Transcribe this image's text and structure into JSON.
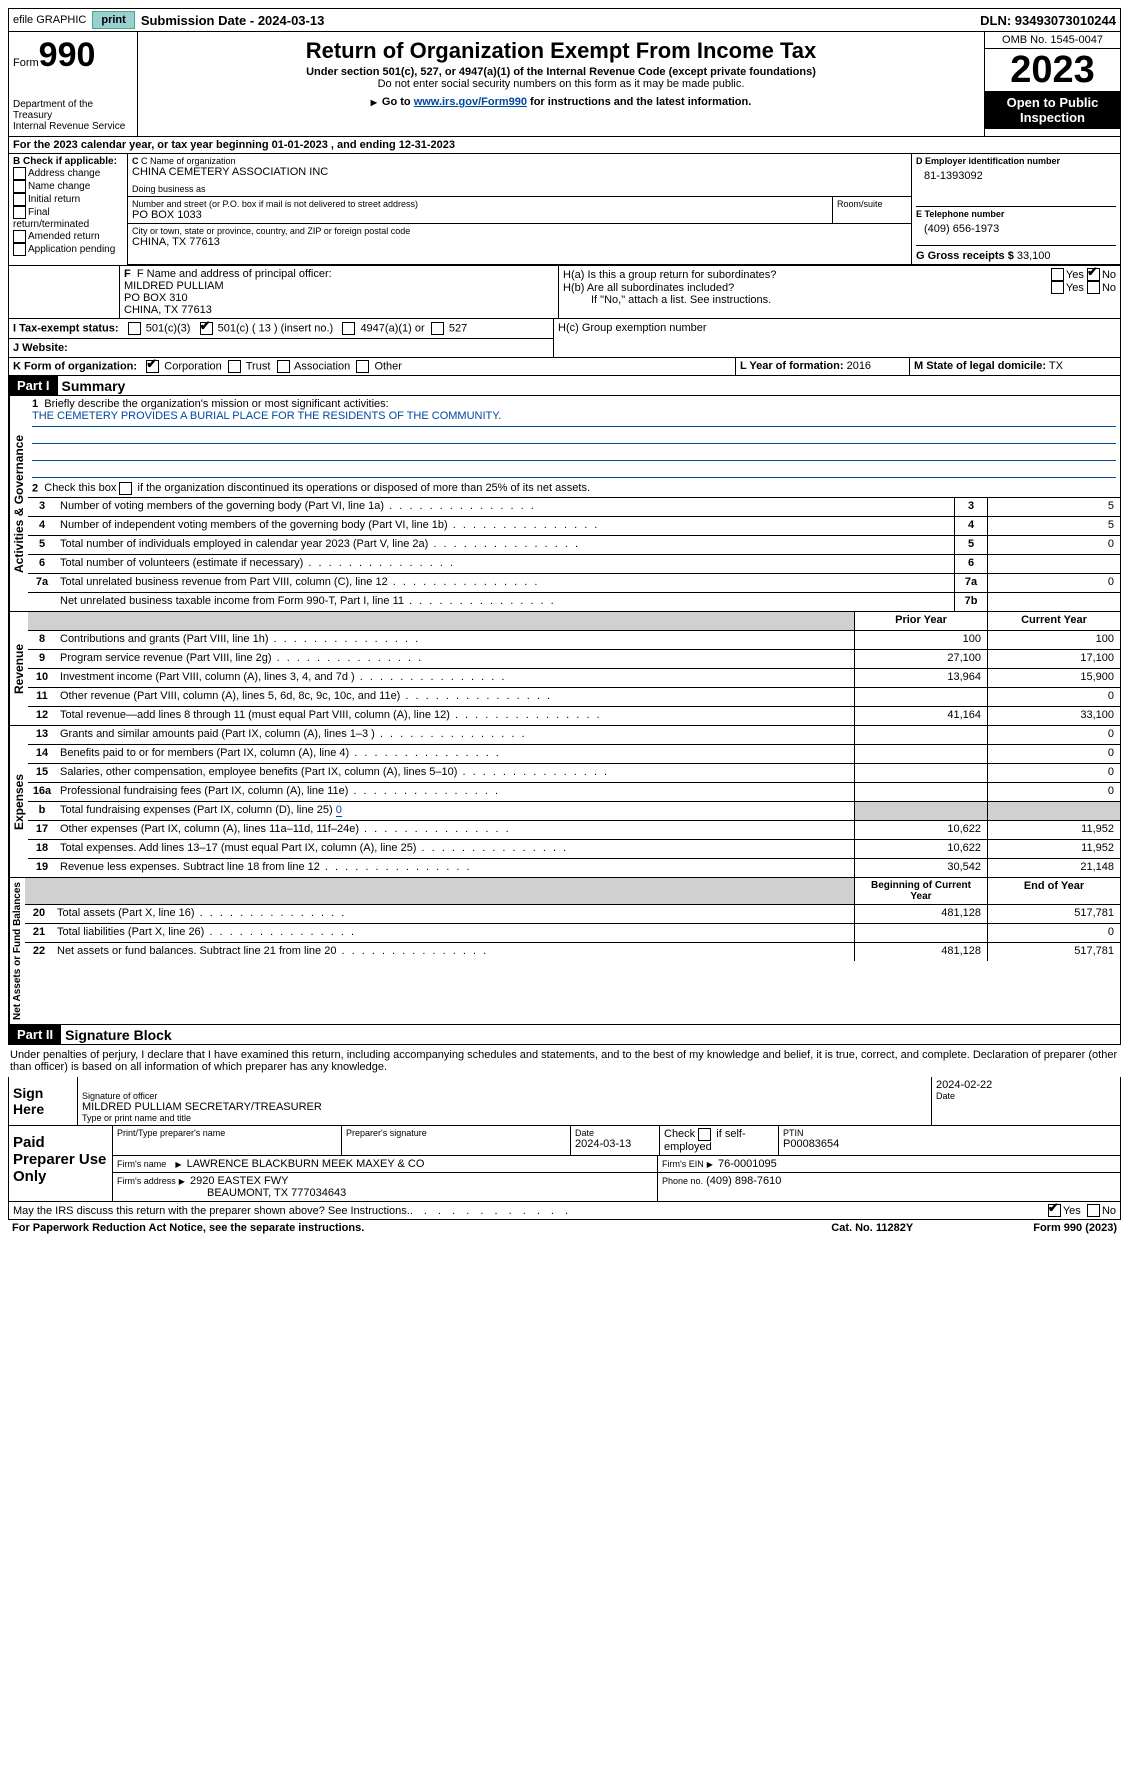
{
  "topbar": {
    "efile": "efile GRAPHIC",
    "print": "print",
    "submission": "Submission Date - 2024-03-13",
    "dln": "DLN: 93493073010244"
  },
  "header": {
    "form_label": "Form",
    "form_number": "990",
    "dept": "Department of the Treasury\nInternal Revenue Service",
    "title": "Return of Organization Exempt From Income Tax",
    "subtitle": "Under section 501(c), 527, or 4947(a)(1) of the Internal Revenue Code (except private foundations)",
    "ssn_note": "Do not enter social security numbers on this form as it may be made public.",
    "goto": "Go to ",
    "goto_link": "www.irs.gov/Form990",
    "goto_tail": " for instructions and the latest information.",
    "omb": "OMB No. 1545-0047",
    "year": "2023",
    "open_public": "Open to Public Inspection"
  },
  "line_a": "For the 2023 calendar year, or tax year beginning 01-01-2023     , and ending 12-31-2023",
  "box_b": {
    "title": "B Check if applicable:",
    "items": [
      "Address change",
      "Name change",
      "Initial return",
      "Final return/terminated",
      "Amended return",
      "Application pending"
    ]
  },
  "box_c": {
    "label": "C Name of organization",
    "name": "CHINA CEMETERY ASSOCIATION INC",
    "dba_label": "Doing business as",
    "street_label": "Number and street (or P.O. box if mail is not delivered to street address)",
    "room_label": "Room/suite",
    "street": "PO BOX 1033",
    "city_label": "City or town, state or province, country, and ZIP or foreign postal code",
    "city": "CHINA, TX  77613"
  },
  "box_d": {
    "label": "D Employer identification number",
    "value": "81-1393092"
  },
  "box_e": {
    "label": "E Telephone number",
    "value": "(409) 656-1973"
  },
  "box_g": {
    "label": "G Gross receipts $",
    "value": "33,100"
  },
  "box_f": {
    "label": "F  Name and address of principal officer:",
    "lines": [
      "MILDRED PULLIAM",
      "PO BOX 310",
      "CHINA, TX  77613"
    ]
  },
  "box_h": {
    "ha": "H(a)  Is this a group return for subordinates?",
    "hb": "H(b)  Are all subordinates included?",
    "hb_note": "If \"No,\" attach a list. See instructions.",
    "hc": "H(c)  Group exemption number",
    "yes": "Yes",
    "no": "No"
  },
  "box_i": {
    "label": "I   Tax-exempt status:",
    "c3": "501(c)(3)",
    "c_other": "501(c) ( 13 ) (insert no.)",
    "a4947": "4947(a)(1) or",
    "s527": "527"
  },
  "box_j": "J   Website:",
  "box_k": {
    "label": "K Form of organization:",
    "corp": "Corporation",
    "trust": "Trust",
    "assoc": "Association",
    "other": "Other"
  },
  "box_l": {
    "label": "L Year of formation:",
    "value": "2016"
  },
  "box_m": {
    "label": "M State of legal domicile:",
    "value": "TX"
  },
  "part1": {
    "label": "Part I",
    "title": "Summary",
    "governance": "Activities & Governance",
    "revenue": "Revenue",
    "expenses": "Expenses",
    "netassets": "Net Assets or Fund Balances",
    "line1": "Briefly describe the organization's mission or most significant activities:",
    "mission": "THE CEMETERY PROVIDES A BURIAL PLACE FOR THE RESIDENTS OF THE COMMUNITY.",
    "line2": "Check this box        if the organization discontinued its operations or disposed of more than 25% of its net assets.",
    "rows_gov": [
      {
        "n": "3",
        "t": "Number of voting members of the governing body (Part VI, line 1a)",
        "k": "3",
        "v": "5"
      },
      {
        "n": "4",
        "t": "Number of independent voting members of the governing body (Part VI, line 1b)",
        "k": "4",
        "v": "5"
      },
      {
        "n": "5",
        "t": "Total number of individuals employed in calendar year 2023 (Part V, line 2a)",
        "k": "5",
        "v": "0"
      },
      {
        "n": "6",
        "t": "Total number of volunteers (estimate if necessary)",
        "k": "6",
        "v": ""
      },
      {
        "n": "7a",
        "t": "Total unrelated business revenue from Part VIII, column (C), line 12",
        "k": "7a",
        "v": "0"
      },
      {
        "n": "",
        "t": "Net unrelated business taxable income from Form 990-T, Part I, line 11",
        "k": "7b",
        "v": ""
      }
    ],
    "head_prior": "Prior Year",
    "head_current": "Current Year",
    "rows_rev": [
      {
        "n": "8",
        "t": "Contributions and grants (Part VIII, line 1h)",
        "p": "100",
        "c": "100"
      },
      {
        "n": "9",
        "t": "Program service revenue (Part VIII, line 2g)",
        "p": "27,100",
        "c": "17,100"
      },
      {
        "n": "10",
        "t": "Investment income (Part VIII, column (A), lines 3, 4, and 7d )",
        "p": "13,964",
        "c": "15,900"
      },
      {
        "n": "11",
        "t": "Other revenue (Part VIII, column (A), lines 5, 6d, 8c, 9c, 10c, and 11e)",
        "p": "",
        "c": "0"
      },
      {
        "n": "12",
        "t": "Total revenue—add lines 8 through 11 (must equal Part VIII, column (A), line 12)",
        "p": "41,164",
        "c": "33,100"
      }
    ],
    "rows_exp": [
      {
        "n": "13",
        "t": "Grants and similar amounts paid (Part IX, column (A), lines 1–3 )",
        "p": "",
        "c": "0"
      },
      {
        "n": "14",
        "t": "Benefits paid to or for members (Part IX, column (A), line 4)",
        "p": "",
        "c": "0"
      },
      {
        "n": "15",
        "t": "Salaries, other compensation, employee benefits (Part IX, column (A), lines 5–10)",
        "p": "",
        "c": "0"
      },
      {
        "n": "16a",
        "t": "Professional fundraising fees (Part IX, column (A), line 11e)",
        "p": "",
        "c": "0"
      },
      {
        "n": "b",
        "t": "Total fundraising expenses (Part IX, column (D), line 25)",
        "p": "SHADE",
        "c": "SHADE",
        "inline": "0"
      },
      {
        "n": "17",
        "t": "Other expenses (Part IX, column (A), lines 11a–11d, 11f–24e)",
        "p": "10,622",
        "c": "11,952"
      },
      {
        "n": "18",
        "t": "Total expenses. Add lines 13–17 (must equal Part IX, column (A), line 25)",
        "p": "10,622",
        "c": "11,952"
      },
      {
        "n": "19",
        "t": "Revenue less expenses. Subtract line 18 from line 12",
        "p": "30,542",
        "c": "21,148"
      }
    ],
    "head_boy": "Beginning of Current Year",
    "head_eoy": "End of Year",
    "rows_net": [
      {
        "n": "20",
        "t": "Total assets (Part X, line 16)",
        "p": "481,128",
        "c": "517,781"
      },
      {
        "n": "21",
        "t": "Total liabilities (Part X, line 26)",
        "p": "",
        "c": "0"
      },
      {
        "n": "22",
        "t": "Net assets or fund balances. Subtract line 21 from line 20",
        "p": "481,128",
        "c": "517,781"
      }
    ]
  },
  "part2": {
    "label": "Part II",
    "title": "Signature Block",
    "declare": "Under penalties of perjury, I declare that I have examined this return, including accompanying schedules and statements, and to the best of my knowledge and belief, it is true, correct, and complete. Declaration of preparer (other than officer) is based on all information of which preparer has any knowledge."
  },
  "sign": {
    "here": "Sign Here",
    "sig_label": "Signature of officer",
    "date_label": "Date",
    "date": "2024-02-22",
    "name": "MILDRED PULLIAM  SECRETARY/TREASURER",
    "name_label": "Type or print name and title"
  },
  "paid": {
    "label": "Paid Preparer Use Only",
    "print_name_label": "Print/Type preparer's name",
    "sig_label": "Preparer's signature",
    "date_label": "Date",
    "date": "2024-03-13",
    "check_label": "Check         if self-employed",
    "ptin_label": "PTIN",
    "ptin": "P00083654",
    "firm_name_label": "Firm's name",
    "firm_name": "LAWRENCE BLACKBURN MEEK MAXEY & CO",
    "firm_ein_label": "Firm's EIN",
    "firm_ein": "76-0001095",
    "firm_addr_label": "Firm's address",
    "firm_addr1": "2920 EASTEX FWY",
    "firm_addr2": "BEAUMONT, TX  777034643",
    "phone_label": "Phone no.",
    "phone": "(409) 898-7610"
  },
  "footer": {
    "discuss": "May the IRS discuss this return with the preparer shown above? See Instructions.",
    "yes": "Yes",
    "no": "No",
    "paperwork": "For Paperwork Reduction Act Notice, see the separate instructions.",
    "cat": "Cat. No. 11282Y",
    "formref": "Form 990 (2023)"
  }
}
